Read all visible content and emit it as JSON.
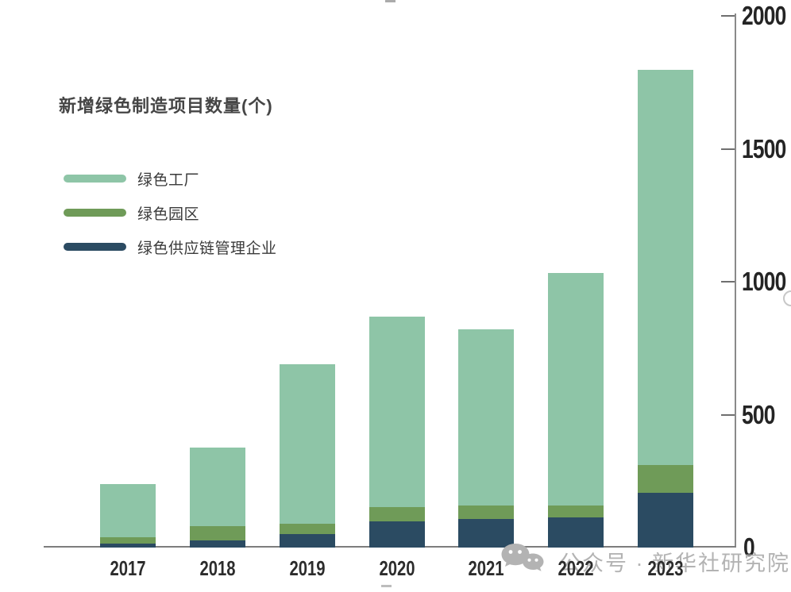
{
  "title": {
    "text": "新增绿色制造项目数量(个)"
  },
  "legend": {
    "items": [
      {
        "label": "绿色工厂",
        "color": "#8ec5a7"
      },
      {
        "label": "绿色园区",
        "color": "#6f9b58"
      },
      {
        "label": "绿色供应链管理企业",
        "color": "#2b4b62"
      }
    ]
  },
  "watermark": {
    "icon": "wechat-icon",
    "text": "公众号 · 新华社研究院",
    "color": "#b3b3b3"
  },
  "chart_data": {
    "type": "bar",
    "stacked": true,
    "title": "新增绿色制造项目数量(个)",
    "xlabel": "",
    "ylabel": "",
    "categories": [
      "2017",
      "2018",
      "2019",
      "2020",
      "2021",
      "2022",
      "2023"
    ],
    "series": [
      {
        "name": "绿色工厂",
        "color": "#8ec5a7",
        "values": [
          201,
          296,
          602,
          719,
          662,
          874,
          1488
        ]
      },
      {
        "name": "绿色园区",
        "color": "#6f9b58",
        "values": [
          24,
          55,
          39,
          53,
          52,
          47,
          104
        ]
      },
      {
        "name": "绿色供应链管理企业",
        "color": "#2b4b62",
        "values": [
          15,
          26,
          50,
          98,
          107,
          112,
          205
        ]
      }
    ],
    "stack_order_bottom_to_top": [
      "绿色供应链管理企业",
      "绿色园区",
      "绿色工厂"
    ],
    "totals": [
      240,
      377,
      691,
      870,
      821,
      1033,
      1797
    ],
    "y_axis": {
      "side": "right",
      "min": 0,
      "max": 2000,
      "ticks": [
        0,
        500,
        1000,
        1500,
        2000
      ]
    },
    "grid": false,
    "legend_position": "upper-left"
  }
}
